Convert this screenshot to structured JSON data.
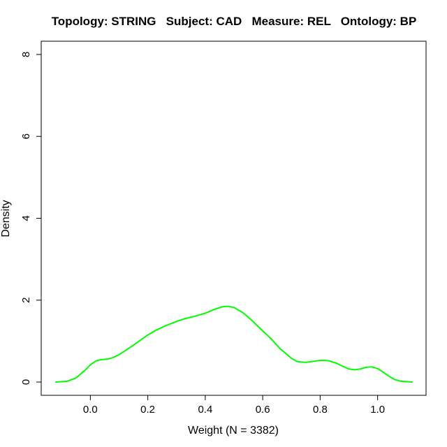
{
  "chart_data": {
    "type": "line",
    "title": "Topology: STRING   Subject: CAD   Measure: REL   Ontology: BP",
    "xlabel": "Weight (N = 3382)",
    "ylabel": "Density",
    "xlim": [
      -0.12,
      1.12
    ],
    "ylim": [
      0,
      8
    ],
    "x_ticks": [
      0.0,
      0.2,
      0.4,
      0.6,
      0.8,
      1.0
    ],
    "x_tick_labels": [
      "0.0",
      "0.2",
      "0.4",
      "0.6",
      "0.8",
      "1.0"
    ],
    "y_ticks": [
      0,
      2,
      4,
      6,
      8
    ],
    "y_tick_labels": [
      "0",
      "2",
      "4",
      "6",
      "8"
    ],
    "grid": false,
    "legend": "none",
    "series": [
      {
        "color": "#00ff00",
        "x": [
          -0.12,
          -0.08,
          -0.05,
          -0.02,
          0.0,
          0.02,
          0.04,
          0.06,
          0.08,
          0.1,
          0.12,
          0.15,
          0.18,
          0.2,
          0.23,
          0.26,
          0.3,
          0.33,
          0.36,
          0.4,
          0.43,
          0.46,
          0.48,
          0.5,
          0.53,
          0.56,
          0.6,
          0.63,
          0.66,
          0.7,
          0.72,
          0.75,
          0.78,
          0.8,
          0.83,
          0.86,
          0.88,
          0.9,
          0.92,
          0.94,
          0.96,
          0.98,
          1.0,
          1.02,
          1.04,
          1.06,
          1.08,
          1.1,
          1.12
        ],
        "y": [
          0.0,
          0.02,
          0.1,
          0.28,
          0.42,
          0.52,
          0.55,
          0.56,
          0.6,
          0.67,
          0.76,
          0.9,
          1.05,
          1.15,
          1.27,
          1.37,
          1.48,
          1.55,
          1.6,
          1.68,
          1.77,
          1.84,
          1.85,
          1.82,
          1.7,
          1.52,
          1.25,
          1.05,
          0.82,
          0.58,
          0.5,
          0.48,
          0.51,
          0.53,
          0.52,
          0.45,
          0.38,
          0.32,
          0.3,
          0.32,
          0.36,
          0.37,
          0.33,
          0.24,
          0.14,
          0.06,
          0.02,
          0.01,
          0.0
        ]
      }
    ]
  }
}
